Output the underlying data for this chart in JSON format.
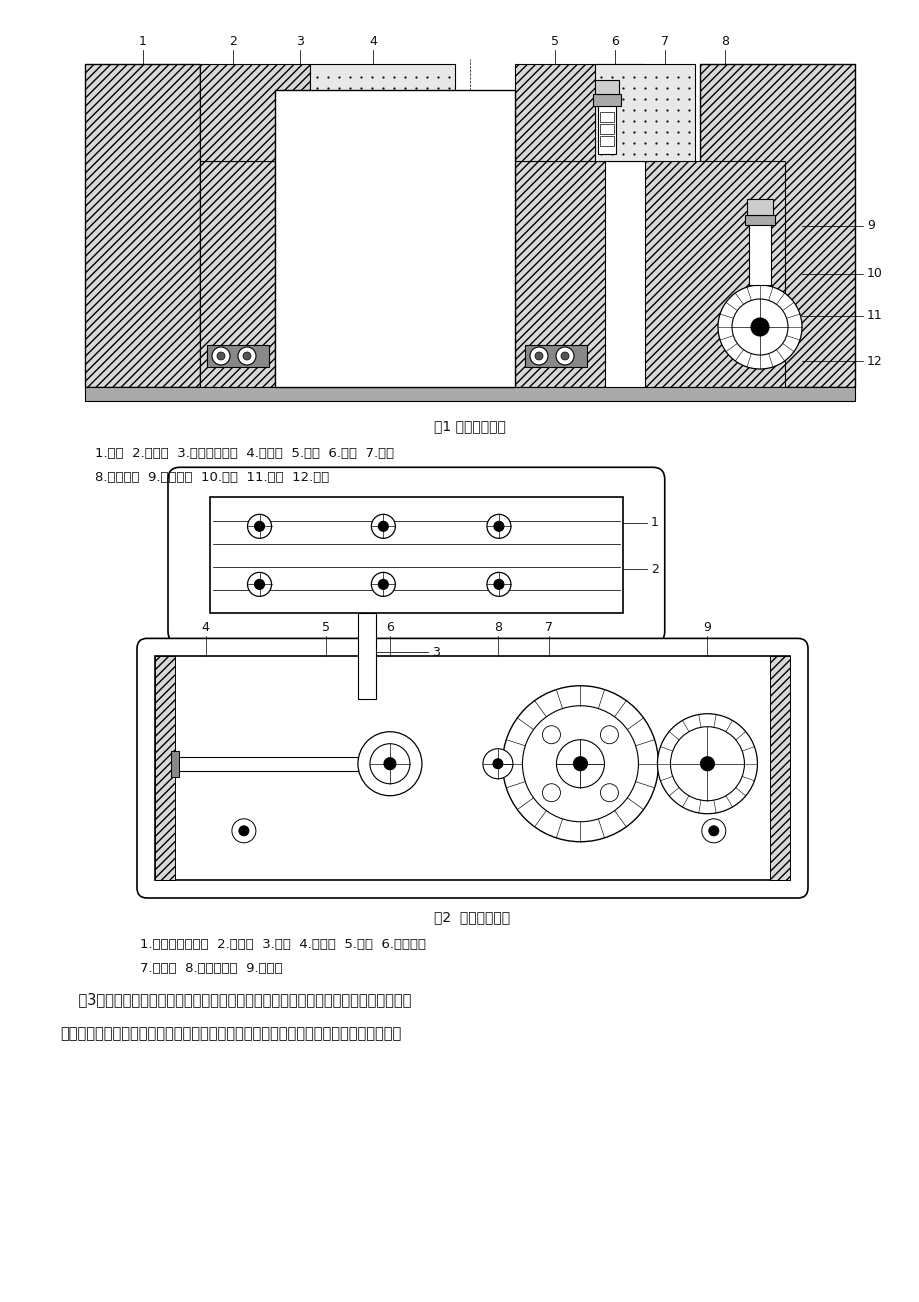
{
  "page_bg": "#ffffff",
  "page_width": 9.2,
  "page_height": 13.02,
  "dpi": 100,
  "fig1_caption": "图1 落料扭斜机构",
  "fig1_labels_line1": "1.模座  2.旋转套  3.转子落料下模  4.收紧套  5.柄丝  6.滚针  7.螺钉",
  "fig1_labels_line2": "8.轴承外套  9.推力轴承  10.蜗轮  11.蜗杆  12.模座",
  "fig2_caption": "图2  机械拨杆机构",
  "fig2_labels_line1": "1.拨杆调节固定座  2.上模座  3.拉杆  4.下模座  5.拨杆  6.向心轴承",
  "fig2_labels_line2": "7.大齿轮  8.单向向心轴  9.小齿轮",
  "text_para1": "    （3）回转铆接。硅钢片的磁性能，在不同的扎制方向有差异，为消除这些差异和弥补",
  "text_para2": "由材料厚度带来的铁心高度不均，高质量的定、转子铁心要求叠片间相互回转一个大角度",
  "font_cn": "SimSun",
  "lw_main": 1.0,
  "lw_thin": 0.6,
  "hatch_pattern": "////",
  "hatch_fc": "#d8d8d8"
}
